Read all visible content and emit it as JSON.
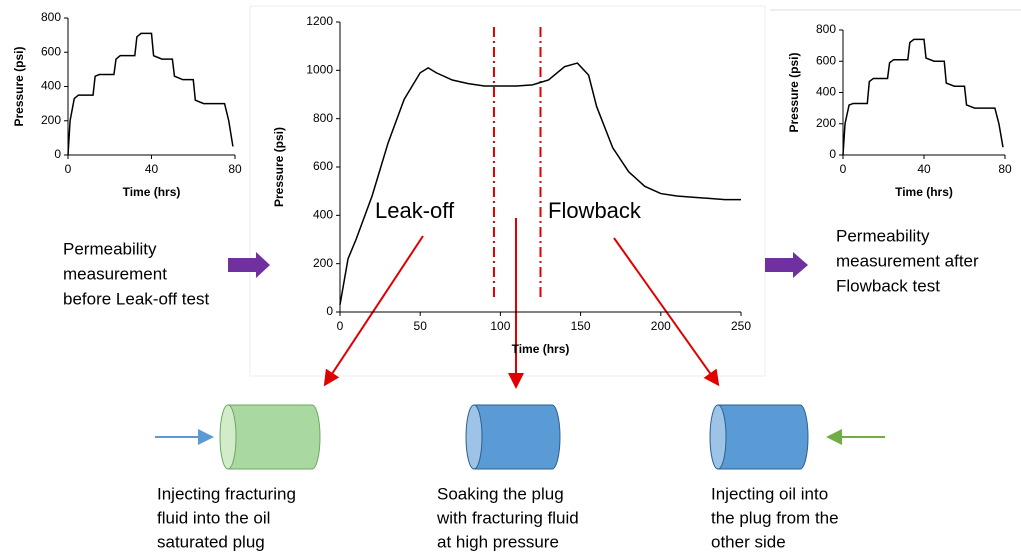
{
  "chart_data": [
    {
      "type": "line",
      "x_label": "Time (hrs)",
      "y_label": "Pressure (psi)",
      "xlim": [
        0,
        80
      ],
      "ylim": [
        0,
        800
      ],
      "xticks": [
        0,
        40,
        80
      ],
      "yticks": [
        0,
        200,
        400,
        600,
        800
      ],
      "color": "#000000",
      "x": [
        0,
        1,
        3,
        5,
        12,
        13,
        15,
        22,
        23,
        25,
        32,
        33,
        35,
        40,
        41,
        45,
        50,
        51,
        55,
        60,
        61,
        65,
        75,
        77,
        79
      ],
      "values": [
        0,
        200,
        330,
        350,
        350,
        460,
        470,
        470,
        560,
        580,
        580,
        690,
        710,
        710,
        580,
        560,
        560,
        460,
        440,
        440,
        320,
        300,
        300,
        200,
        50
      ]
    },
    {
      "type": "line",
      "x_label": "Time (hrs)",
      "y_label": "Pressure (psi)",
      "xlim": [
        0,
        250
      ],
      "ylim": [
        0,
        1200
      ],
      "xticks": [
        0,
        50,
        100,
        150,
        200,
        250
      ],
      "yticks": [
        0,
        200,
        400,
        600,
        800,
        1000,
        1200
      ],
      "color": "#000000",
      "vlines": [
        96,
        125
      ],
      "vline_color": "#e00000",
      "x": [
        0,
        5,
        10,
        20,
        30,
        40,
        50,
        55,
        60,
        70,
        80,
        90,
        100,
        110,
        120,
        130,
        140,
        148,
        155,
        160,
        170,
        180,
        190,
        200,
        210,
        220,
        230,
        240,
        250
      ],
      "values": [
        30,
        220,
        300,
        480,
        700,
        880,
        990,
        1010,
        990,
        960,
        945,
        935,
        935,
        935,
        940,
        960,
        1015,
        1030,
        980,
        850,
        680,
        580,
        520,
        490,
        480,
        475,
        470,
        465,
        465
      ]
    },
    {
      "type": "line",
      "x_label": "Time (hrs)",
      "y_label": "Pressure (psi)",
      "xlim": [
        0,
        80
      ],
      "ylim": [
        0,
        800
      ],
      "xticks": [
        0,
        40,
        80
      ],
      "yticks": [
        0,
        200,
        400,
        600,
        800
      ],
      "color": "#000000",
      "x": [
        0,
        1,
        3,
        5,
        12,
        13,
        15,
        22,
        23,
        25,
        32,
        33,
        35,
        40,
        41,
        45,
        50,
        51,
        55,
        60,
        61,
        65,
        75,
        77,
        79
      ],
      "values": [
        0,
        200,
        320,
        330,
        330,
        470,
        490,
        490,
        590,
        610,
        610,
        720,
        740,
        740,
        620,
        600,
        600,
        460,
        440,
        440,
        320,
        300,
        300,
        200,
        50
      ]
    }
  ],
  "labels": {
    "leak_off": "Leak-off",
    "flowback": "Flowback",
    "before": [
      "Permeability",
      "measurement",
      "before Leak-off test"
    ],
    "after": [
      "Permeability",
      "measurement after",
      "Flowback test"
    ],
    "step1": [
      "Injecting fracturing",
      "fluid into the oil",
      "saturated plug"
    ],
    "step2": [
      "Soaking the plug",
      "with fracturing fluid",
      "at high pressure"
    ],
    "step3": [
      "Injecting oil into",
      "the plug from the",
      "other side"
    ]
  }
}
